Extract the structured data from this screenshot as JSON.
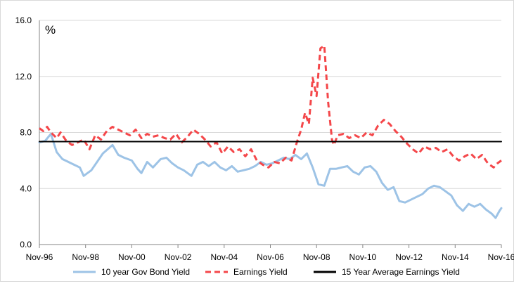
{
  "chart_data": {
    "type": "line",
    "title": "",
    "unit_label": "%",
    "xlabel": "",
    "ylabel": "",
    "ylim": [
      0,
      16
    ],
    "y_ticks": [
      "0.0",
      "4.0",
      "8.0",
      "12.0",
      "16.0"
    ],
    "x_ticks": [
      "Nov-96",
      "Nov-98",
      "Nov-00",
      "Nov-02",
      "Nov-04",
      "Nov-06",
      "Nov-08",
      "Nov-10",
      "Nov-12",
      "Nov-14",
      "Nov-16"
    ],
    "grid": "horizontal",
    "legend_position": "bottom",
    "series": [
      {
        "name": "10 year Gov Bond Yield",
        "color": "#9dc3e6",
        "style": "solid",
        "points": [
          [
            "1996-11",
            7.3
          ],
          [
            "1997-02",
            7.4
          ],
          [
            "1997-05",
            7.9
          ],
          [
            "1997-08",
            6.6
          ],
          [
            "1997-11",
            6.1
          ],
          [
            "1998-02",
            5.9
          ],
          [
            "1998-05",
            5.7
          ],
          [
            "1998-08",
            5.5
          ],
          [
            "1998-10",
            4.9
          ],
          [
            "1999-02",
            5.3
          ],
          [
            "1999-05",
            5.9
          ],
          [
            "1999-08",
            6.5
          ],
          [
            "2000-01",
            7.1
          ],
          [
            "2000-04",
            6.4
          ],
          [
            "2000-07",
            6.2
          ],
          [
            "2000-11",
            6.0
          ],
          [
            "2001-02",
            5.4
          ],
          [
            "2001-04",
            5.1
          ],
          [
            "2001-07",
            5.9
          ],
          [
            "2001-10",
            5.5
          ],
          [
            "2002-02",
            6.1
          ],
          [
            "2002-05",
            6.2
          ],
          [
            "2002-08",
            5.8
          ],
          [
            "2002-11",
            5.5
          ],
          [
            "2003-02",
            5.3
          ],
          [
            "2003-06",
            4.9
          ],
          [
            "2003-09",
            5.7
          ],
          [
            "2003-12",
            5.9
          ],
          [
            "2004-03",
            5.6
          ],
          [
            "2004-06",
            5.9
          ],
          [
            "2004-09",
            5.5
          ],
          [
            "2004-12",
            5.3
          ],
          [
            "2005-03",
            5.6
          ],
          [
            "2005-06",
            5.2
          ],
          [
            "2005-09",
            5.3
          ],
          [
            "2005-12",
            5.4
          ],
          [
            "2006-03",
            5.6
          ],
          [
            "2006-06",
            5.9
          ],
          [
            "2006-09",
            5.7
          ],
          [
            "2006-12",
            5.8
          ],
          [
            "2007-03",
            6.0
          ],
          [
            "2007-06",
            6.2
          ],
          [
            "2007-09",
            6.1
          ],
          [
            "2007-12",
            6.4
          ],
          [
            "2008-03",
            6.1
          ],
          [
            "2008-06",
            6.5
          ],
          [
            "2008-09",
            5.5
          ],
          [
            "2008-12",
            4.3
          ],
          [
            "2009-03",
            4.2
          ],
          [
            "2009-06",
            5.4
          ],
          [
            "2009-09",
            5.4
          ],
          [
            "2009-12",
            5.5
          ],
          [
            "2010-03",
            5.6
          ],
          [
            "2010-06",
            5.2
          ],
          [
            "2010-09",
            5.0
          ],
          [
            "2010-12",
            5.5
          ],
          [
            "2011-03",
            5.6
          ],
          [
            "2011-06",
            5.2
          ],
          [
            "2011-09",
            4.4
          ],
          [
            "2011-12",
            3.9
          ],
          [
            "2012-03",
            4.1
          ],
          [
            "2012-06",
            3.1
          ],
          [
            "2012-09",
            3.0
          ],
          [
            "2012-12",
            3.2
          ],
          [
            "2013-03",
            3.4
          ],
          [
            "2013-06",
            3.6
          ],
          [
            "2013-09",
            4.0
          ],
          [
            "2013-12",
            4.2
          ],
          [
            "2014-03",
            4.1
          ],
          [
            "2014-06",
            3.8
          ],
          [
            "2014-09",
            3.5
          ],
          [
            "2014-12",
            2.8
          ],
          [
            "2015-03",
            2.4
          ],
          [
            "2015-06",
            2.9
          ],
          [
            "2015-09",
            2.7
          ],
          [
            "2015-12",
            2.9
          ],
          [
            "2016-03",
            2.5
          ],
          [
            "2016-06",
            2.2
          ],
          [
            "2016-08",
            1.9
          ],
          [
            "2016-10",
            2.4
          ],
          [
            "2016-11",
            2.6
          ]
        ]
      },
      {
        "name": "Earnings Yield",
        "color": "#f4474a",
        "style": "dashed",
        "points": [
          [
            "1996-11",
            8.3
          ],
          [
            "1997-01",
            8.1
          ],
          [
            "1997-03",
            8.4
          ],
          [
            "1997-05",
            8.0
          ],
          [
            "1997-08",
            7.6
          ],
          [
            "1997-10",
            8.0
          ],
          [
            "1998-01",
            7.4
          ],
          [
            "1998-04",
            7.1
          ],
          [
            "1998-07",
            7.3
          ],
          [
            "1998-10",
            7.5
          ],
          [
            "1999-01",
            6.8
          ],
          [
            "1999-04",
            7.8
          ],
          [
            "1999-07",
            7.5
          ],
          [
            "1999-10",
            8.1
          ],
          [
            "2000-01",
            8.4
          ],
          [
            "2000-04",
            8.2
          ],
          [
            "2000-07",
            8.0
          ],
          [
            "2000-10",
            7.8
          ],
          [
            "2001-01",
            8.2
          ],
          [
            "2001-04",
            7.6
          ],
          [
            "2001-07",
            7.9
          ],
          [
            "2001-10",
            7.7
          ],
          [
            "2002-01",
            7.8
          ],
          [
            "2002-04",
            7.6
          ],
          [
            "2002-07",
            7.5
          ],
          [
            "2002-10",
            7.9
          ],
          [
            "2003-01",
            7.3
          ],
          [
            "2003-04",
            7.7
          ],
          [
            "2003-07",
            8.2
          ],
          [
            "2003-10",
            7.9
          ],
          [
            "2004-01",
            7.5
          ],
          [
            "2004-04",
            7.0
          ],
          [
            "2004-07",
            7.3
          ],
          [
            "2004-10",
            6.5
          ],
          [
            "2005-01",
            7.0
          ],
          [
            "2005-04",
            6.6
          ],
          [
            "2005-07",
            6.8
          ],
          [
            "2005-10",
            6.3
          ],
          [
            "2006-01",
            6.8
          ],
          [
            "2006-04",
            6.0
          ],
          [
            "2006-07",
            5.7
          ],
          [
            "2006-10",
            5.5
          ],
          [
            "2007-01",
            5.9
          ],
          [
            "2007-04",
            5.8
          ],
          [
            "2007-07",
            6.2
          ],
          [
            "2007-10",
            6.0
          ],
          [
            "2008-01",
            7.4
          ],
          [
            "2008-03",
            8.2
          ],
          [
            "2008-05",
            9.4
          ],
          [
            "2008-07",
            8.6
          ],
          [
            "2008-09",
            11.9
          ],
          [
            "2008-11",
            10.6
          ],
          [
            "2009-01",
            14.0
          ],
          [
            "2009-03",
            14.2
          ],
          [
            "2009-05",
            10.2
          ],
          [
            "2009-07",
            7.5
          ],
          [
            "2009-08",
            7.1
          ],
          [
            "2009-10",
            7.8
          ],
          [
            "2010-01",
            7.9
          ],
          [
            "2010-04",
            7.6
          ],
          [
            "2010-07",
            7.8
          ],
          [
            "2010-10",
            7.6
          ],
          [
            "2011-01",
            8.0
          ],
          [
            "2011-04",
            7.8
          ],
          [
            "2011-07",
            8.5
          ],
          [
            "2011-10",
            8.9
          ],
          [
            "2012-01",
            8.6
          ],
          [
            "2012-04",
            8.1
          ],
          [
            "2012-07",
            7.7
          ],
          [
            "2012-10",
            7.2
          ],
          [
            "2013-01",
            6.8
          ],
          [
            "2013-04",
            6.5
          ],
          [
            "2013-07",
            7.0
          ],
          [
            "2013-10",
            6.8
          ],
          [
            "2014-01",
            6.9
          ],
          [
            "2014-04",
            6.6
          ],
          [
            "2014-07",
            6.8
          ],
          [
            "2014-10",
            6.3
          ],
          [
            "2015-01",
            6.0
          ],
          [
            "2015-04",
            6.3
          ],
          [
            "2015-07",
            6.5
          ],
          [
            "2015-10",
            6.1
          ],
          [
            "2016-01",
            6.4
          ],
          [
            "2016-04",
            5.8
          ],
          [
            "2016-07",
            5.5
          ],
          [
            "2016-09",
            5.8
          ],
          [
            "2016-11",
            6.0
          ]
        ]
      },
      {
        "name": "15 Year Average Earnings Yield",
        "color": "#000000",
        "style": "solid",
        "points": [
          [
            "1996-11",
            7.35
          ],
          [
            "2016-11",
            7.35
          ]
        ]
      }
    ]
  }
}
